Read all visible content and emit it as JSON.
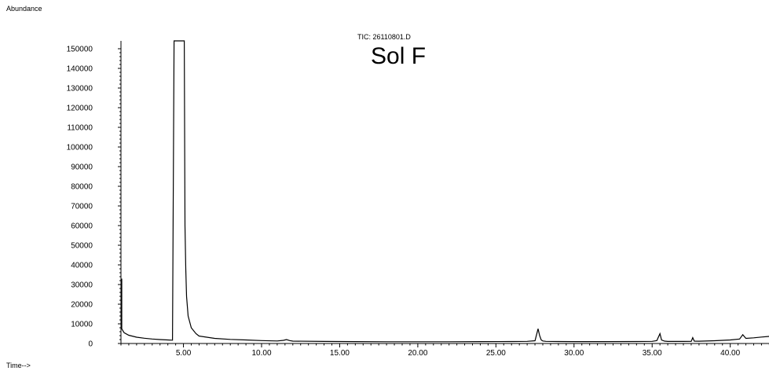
{
  "chart_data": {
    "type": "line",
    "title": "TIC: 26110801.D",
    "annotation": "Sol F",
    "ylabel": "Abundance",
    "xlabel": "Time-->",
    "xlim": [
      0.6,
      42.5
    ],
    "ylim": [
      0,
      155000
    ],
    "grid": false,
    "y_ticks": [
      0,
      10000,
      20000,
      30000,
      40000,
      50000,
      60000,
      70000,
      80000,
      90000,
      100000,
      110000,
      120000,
      130000,
      140000,
      150000
    ],
    "y_tick_labels": [
      "0",
      "10000",
      "20000",
      "30000",
      "40000",
      "50000",
      "60000",
      "70000",
      "80000",
      "90000",
      "100000",
      "110000",
      "120000",
      "130000",
      "140000",
      "150000"
    ],
    "x_ticks": [
      5,
      10,
      15,
      20,
      25,
      30,
      35,
      40
    ],
    "x_tick_labels": [
      "5.00",
      "10.00",
      "15.00",
      "20.00",
      "25.00",
      "30.00",
      "35.00",
      "40.00"
    ],
    "series": [
      {
        "x": [
          0.6,
          0.65,
          0.7,
          0.8,
          0.9,
          1.0,
          1.2,
          1.5,
          2.0,
          2.5,
          3.0,
          3.5,
          4.0,
          4.3,
          4.4,
          4.45,
          4.5,
          4.8,
          5.0,
          5.05,
          5.1,
          5.15,
          5.2,
          5.3,
          5.5,
          5.8,
          6.0,
          7.0,
          8.0,
          9.0,
          10.0,
          11.0,
          11.4,
          11.6,
          11.8,
          12.0,
          14.0,
          16.0,
          18.0,
          20.0,
          22.0,
          24.0,
          26.0,
          27.0,
          27.5,
          27.7,
          27.8,
          27.9,
          28.0,
          28.2,
          29.0,
          30.0,
          32.0,
          34.0,
          35.0,
          35.3,
          35.5,
          35.6,
          35.8,
          36.0,
          37.0,
          37.5,
          37.6,
          37.7,
          38.0,
          39.0,
          40.0,
          40.6,
          40.8,
          41.0,
          41.5,
          42.0,
          42.5
        ],
        "values": [
          33000,
          28000,
          20000,
          14000,
          10000,
          7500,
          5500,
          4200,
          3200,
          2700,
          2300,
          2000,
          1800,
          1700,
          155000,
          155000,
          155000,
          155000,
          155000,
          155000,
          60000,
          38000,
          24000,
          14000,
          8000,
          5000,
          3800,
          2600,
          2100,
          1800,
          1500,
          1300,
          1600,
          2000,
          1500,
          1200,
          1050,
          950,
          900,
          900,
          900,
          950,
          1000,
          1100,
          1400,
          7500,
          4000,
          1800,
          1300,
          1100,
          1000,
          950,
          950,
          1000,
          1100,
          1500,
          5000,
          1800,
          1200,
          1050,
          1050,
          1100,
          3000,
          1200,
          1150,
          1400,
          1800,
          2300,
          4500,
          2600,
          2900,
          3300,
          3600
        ]
      }
    ]
  }
}
